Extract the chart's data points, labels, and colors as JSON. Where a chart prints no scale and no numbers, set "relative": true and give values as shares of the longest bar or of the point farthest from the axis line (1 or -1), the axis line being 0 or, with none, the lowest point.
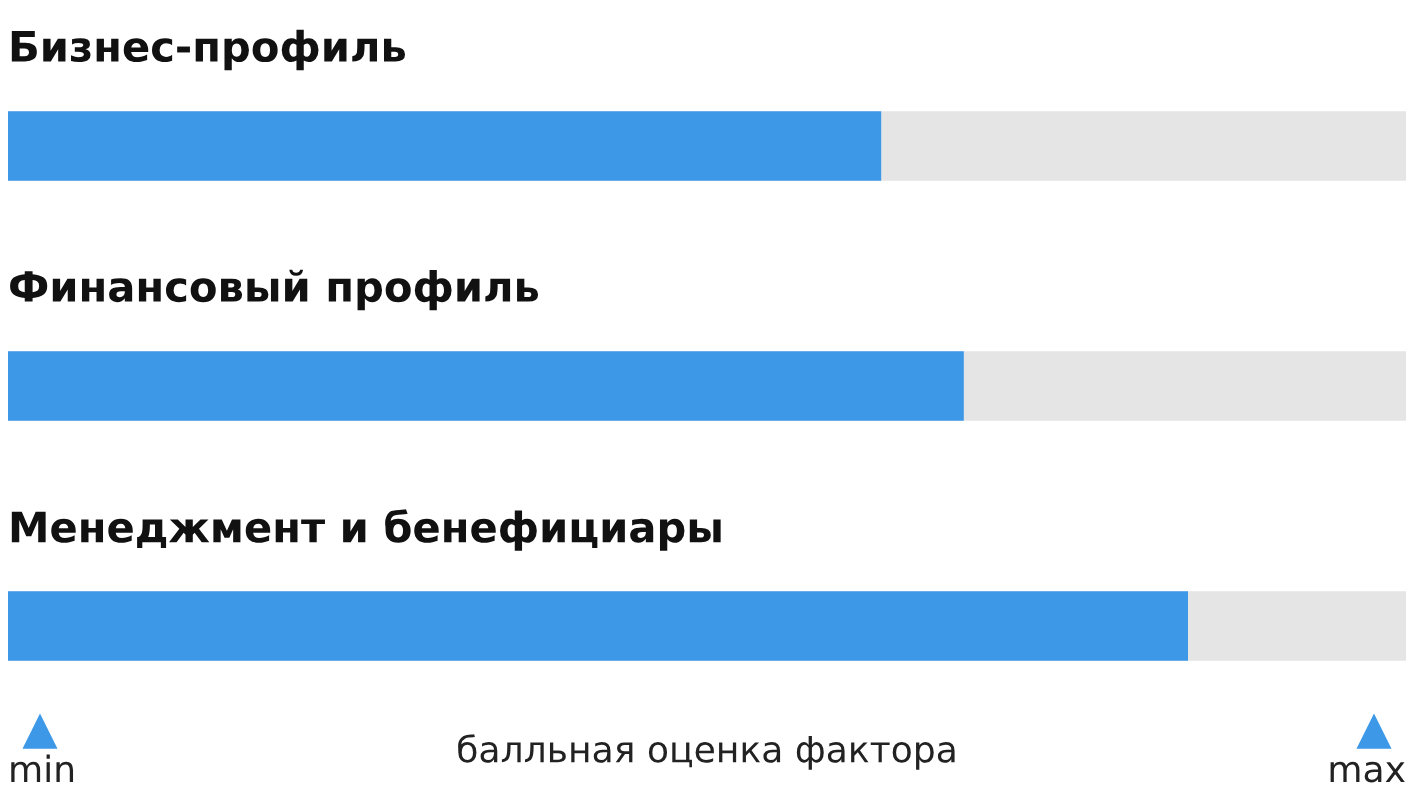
{
  "chart_data": {
    "type": "bar",
    "orientation": "horizontal",
    "relative": true,
    "categories": [
      "Бизнес-профиль",
      "Финансовый профиль",
      "Менеджмент и бенефициары"
    ],
    "values": [
      0.74,
      0.81,
      1
    ],
    "color": "#3d98e8",
    "xlabel": "балльная оценка фактора",
    "annotations": [
      "min",
      "max"
    ]
  }
}
